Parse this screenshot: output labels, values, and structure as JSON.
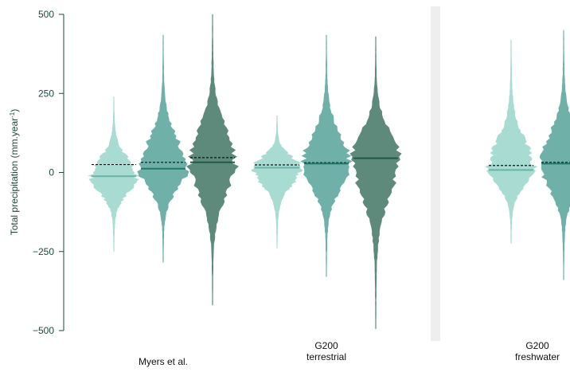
{
  "chart_data": {
    "type": "violin",
    "ylabel": "Total precipitation (mm.year",
    "ylabel_superscript": "-1",
    "ylabel_close": ")",
    "ylim": [
      -500,
      500
    ],
    "y_ticks": [
      {
        "value": 500,
        "label": "500"
      },
      {
        "value": 250,
        "label": "250"
      },
      {
        "value": 0,
        "label": "0"
      },
      {
        "value": -250,
        "label": "−250"
      },
      {
        "value": -500,
        "label": "−500"
      }
    ],
    "groups": [
      {
        "id": "myers",
        "label_lines": [
          "Myers et al."
        ],
        "violins": 3
      },
      {
        "id": "terrestrial",
        "label_lines": [
          "G200",
          "terrestrial"
        ],
        "violins": 3
      },
      {
        "id": "freshwater",
        "label_lines": [
          "G200",
          "freshwater"
        ],
        "violins": 2
      }
    ],
    "colors": {
      "light": "#a8dcd3",
      "medium": "#6fb0a8",
      "dark": "#5e8a7c",
      "median_light": "#66b4a6",
      "median_medium": "#1f7a6d",
      "median_dark": "#1d5a4a",
      "mean_line": "#111111",
      "axis": "#1a4a3a",
      "separator": "#eeeeee"
    },
    "violins": [
      {
        "group": "myers",
        "shade": "light",
        "min": -250,
        "max": 240,
        "median": -12,
        "mean": 25
      },
      {
        "group": "myers",
        "shade": "medium",
        "min": -285,
        "max": 435,
        "median": 12,
        "mean": 32
      },
      {
        "group": "myers",
        "shade": "dark",
        "min": -420,
        "max": 500,
        "median": 32,
        "mean": 47
      },
      {
        "group": "terrestrial",
        "shade": "light",
        "min": -240,
        "max": 180,
        "median": 15,
        "mean": 24
      },
      {
        "group": "terrestrial",
        "shade": "medium",
        "min": -330,
        "max": 435,
        "median": 28,
        "mean": 31
      },
      {
        "group": "terrestrial",
        "shade": "dark",
        "min": -495,
        "max": 430,
        "median": 45,
        "mean": 45
      },
      {
        "group": "freshwater",
        "shade": "light",
        "min": -225,
        "max": 420,
        "median": 8,
        "mean": 22
      },
      {
        "group": "freshwater",
        "shade": "medium",
        "min": -340,
        "max": 450,
        "median": 28,
        "mean": 32
      }
    ]
  }
}
